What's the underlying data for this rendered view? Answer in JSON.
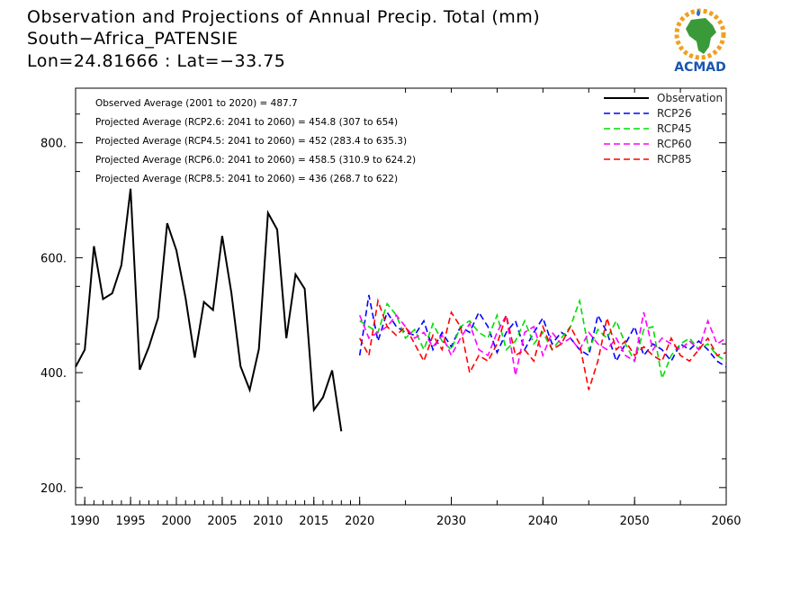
{
  "header": {
    "line1": "Observation and Projections of Annual Precip. Total (mm)",
    "line2": "South−Africa_PATENSIE",
    "line3": "Lon=24.81666 : Lat=−33.75"
  },
  "logo": {
    "text": "ACMAD",
    "icon": "africa-map-icon"
  },
  "chart_data": {
    "type": "line",
    "xlim": [
      1989,
      2060
    ],
    "ylim": [
      170,
      895
    ],
    "x_ticks": [
      1990,
      1995,
      2000,
      2005,
      2010,
      2015,
      2020,
      2030,
      2040,
      2050,
      2060
    ],
    "y_ticks": [
      200,
      400,
      600,
      800
    ],
    "y_tick_labels": [
      "200.",
      "400.",
      "600.",
      "800."
    ],
    "annotations": [
      "Observed Average (2001 to 2020) = 487.7",
      "Projected Average (RCP2.6: 2041 to 2060) = 454.8 (307 to 654)",
      "Projected Average (RCP4.5: 2041 to 2060) = 452 (283.4 to 635.3)",
      "Projected Average (RCP6.0: 2041 to 2060) = 458.5 (310.9 to 624.2)",
      "Projected Average (RCP8.5: 2041 to 2060) = 436 (268.7 to 622)"
    ],
    "legend_position": "top-right",
    "series": [
      {
        "name": "Observation",
        "color": "#000000",
        "dash": "solid",
        "x": [
          1989,
          1990,
          1991,
          1992,
          1993,
          1994,
          1995,
          1996,
          1997,
          1998,
          1999,
          2000,
          2001,
          2002,
          2003,
          2004,
          2005,
          2006,
          2007,
          2008,
          2009,
          2010,
          2011,
          2012,
          2013,
          2014,
          2015,
          2016,
          2017,
          2018,
          2019,
          2020
        ],
        "values": [
          410,
          440,
          620,
          528,
          538,
          587,
          720,
          405,
          445,
          495,
          660,
          613,
          530,
          426,
          523,
          509,
          638,
          539,
          411,
          370,
          441,
          678,
          649,
          460,
          571,
          546,
          335,
          357,
          404,
          298,
          null,
          null
        ]
      },
      {
        "name": "RCP26",
        "color": "#0000ff",
        "dash": "dashed",
        "x": [
          2020,
          2021,
          2022,
          2023,
          2024,
          2025,
          2026,
          2027,
          2028,
          2029,
          2030,
          2031,
          2032,
          2033,
          2034,
          2035,
          2036,
          2037,
          2038,
          2039,
          2040,
          2041,
          2042,
          2043,
          2044,
          2045,
          2046,
          2047,
          2048,
          2049,
          2050,
          2051,
          2052,
          2053,
          2054,
          2055,
          2056,
          2057,
          2058,
          2059,
          2060
        ],
        "values": [
          430,
          535,
          455,
          505,
          480,
          470,
          465,
          490,
          440,
          470,
          445,
          480,
          470,
          505,
          480,
          435,
          470,
          490,
          440,
          470,
          495,
          450,
          470,
          460,
          440,
          430,
          500,
          470,
          420,
          450,
          480,
          430,
          450,
          440,
          420,
          450,
          440,
          455,
          440,
          420,
          410
        ]
      },
      {
        "name": "RCP45",
        "color": "#00dd00",
        "dash": "dashed",
        "x": [
          2020,
          2021,
          2022,
          2023,
          2024,
          2025,
          2026,
          2027,
          2028,
          2029,
          2030,
          2031,
          2032,
          2033,
          2034,
          2035,
          2036,
          2037,
          2038,
          2039,
          2040,
          2041,
          2042,
          2043,
          2044,
          2045,
          2046,
          2047,
          2048,
          2049,
          2050,
          2051,
          2052,
          2053,
          2054,
          2055,
          2056,
          2057,
          2058,
          2059,
          2060
        ],
        "values": [
          490,
          480,
          470,
          520,
          500,
          460,
          475,
          440,
          485,
          455,
          440,
          480,
          490,
          470,
          460,
          500,
          440,
          455,
          490,
          450,
          470,
          440,
          460,
          480,
          525,
          440,
          475,
          460,
          490,
          450,
          420,
          475,
          480,
          390,
          430,
          450,
          460,
          440,
          450,
          430,
          420
        ]
      },
      {
        "name": "RCP60",
        "color": "#ff00ff",
        "dash": "dashed",
        "x": [
          2020,
          2021,
          2022,
          2023,
          2024,
          2025,
          2026,
          2027,
          2028,
          2029,
          2030,
          2031,
          2032,
          2033,
          2034,
          2035,
          2036,
          2037,
          2038,
          2039,
          2040,
          2041,
          2042,
          2043,
          2044,
          2045,
          2046,
          2047,
          2048,
          2049,
          2050,
          2051,
          2052,
          2053,
          2054,
          2055,
          2056,
          2057,
          2058,
          2059,
          2060
        ],
        "values": [
          500,
          460,
          470,
          480,
          500,
          480,
          460,
          470,
          445,
          465,
          430,
          460,
          485,
          440,
          430,
          470,
          500,
          395,
          470,
          480,
          430,
          470,
          450,
          460,
          440,
          470,
          450,
          440,
          460,
          430,
          420,
          505,
          440,
          460,
          450,
          440,
          455,
          440,
          490,
          450,
          460
        ]
      },
      {
        "name": "RCP85",
        "color": "#ff0000",
        "dash": "dashed",
        "x": [
          2020,
          2021,
          2022,
          2023,
          2024,
          2025,
          2026,
          2027,
          2028,
          2029,
          2030,
          2031,
          2032,
          2033,
          2034,
          2035,
          2036,
          2037,
          2038,
          2039,
          2040,
          2041,
          2042,
          2043,
          2044,
          2045,
          2046,
          2047,
          2048,
          2049,
          2050,
          2051,
          2052,
          2053,
          2054,
          2055,
          2056,
          2057,
          2058,
          2059,
          2060
        ],
        "values": [
          460,
          430,
          525,
          480,
          465,
          480,
          450,
          420,
          465,
          440,
          505,
          480,
          400,
          430,
          420,
          450,
          500,
          430,
          440,
          420,
          480,
          440,
          450,
          480,
          450,
          370,
          420,
          495,
          440,
          455,
          430,
          445,
          430,
          420,
          460,
          430,
          420,
          440,
          460,
          430,
          435
        ]
      }
    ]
  }
}
